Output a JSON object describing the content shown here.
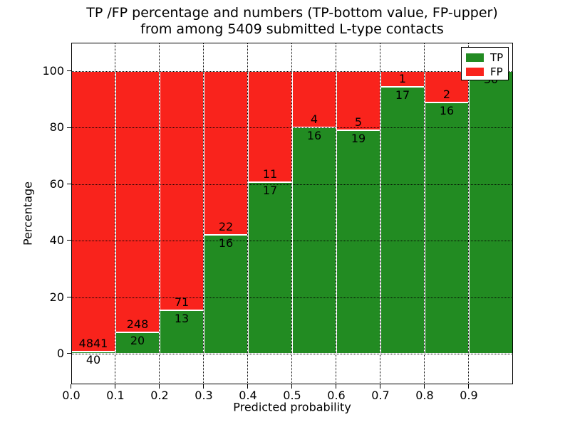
{
  "title": {
    "line1": "TP /FP percentage and numbers (TP-bottom value, FP-upper)",
    "line2": "from among 5409 submitted L-type contacts"
  },
  "chart_data": {
    "type": "bar",
    "stacked": true,
    "normalized_to_percent": true,
    "title": "TP /FP percentage and numbers (TP-bottom value, FP-upper) from among 5409 submitted L-type contacts",
    "xlabel": "Predicted probability",
    "ylabel": "Percentage",
    "total_contacts": 5409,
    "xlim": [
      0.0,
      1.0
    ],
    "ylim": [
      -10,
      110
    ],
    "grid": true,
    "x_tick_labels": [
      "0.0",
      "0.1",
      "0.2",
      "0.3",
      "0.4",
      "0.5",
      "0.6",
      "0.7",
      "0.8",
      "0.9"
    ],
    "y_tick_values": [
      0,
      20,
      40,
      60,
      80,
      100
    ],
    "bin_width": 0.1,
    "bins": [
      {
        "range": "0.0-0.1",
        "tp": 40,
        "fp": 4841
      },
      {
        "range": "0.1-0.2",
        "tp": 20,
        "fp": 248
      },
      {
        "range": "0.2-0.3",
        "tp": 13,
        "fp": 71
      },
      {
        "range": "0.3-0.4",
        "tp": 16,
        "fp": 22
      },
      {
        "range": "0.4-0.5",
        "tp": 17,
        "fp": 11
      },
      {
        "range": "0.5-0.6",
        "tp": 16,
        "fp": 4
      },
      {
        "range": "0.6-0.7",
        "tp": 19,
        "fp": 5
      },
      {
        "range": "0.7-0.8",
        "tp": 17,
        "fp": 1
      },
      {
        "range": "0.8-0.9",
        "tp": 16,
        "fp": 2
      },
      {
        "range": "0.9-1.0",
        "tp": 30,
        "fp": 0
      }
    ],
    "legend": {
      "position": "upper right",
      "entries": [
        {
          "label": "TP",
          "color": "#228b22"
        },
        {
          "label": "FP",
          "color": "#f9231c"
        }
      ]
    }
  },
  "colors": {
    "tp": "#228b22",
    "fp": "#f9231c",
    "bar_edge": "#ffffff",
    "grid": "#000000",
    "background": "#ffffff"
  }
}
